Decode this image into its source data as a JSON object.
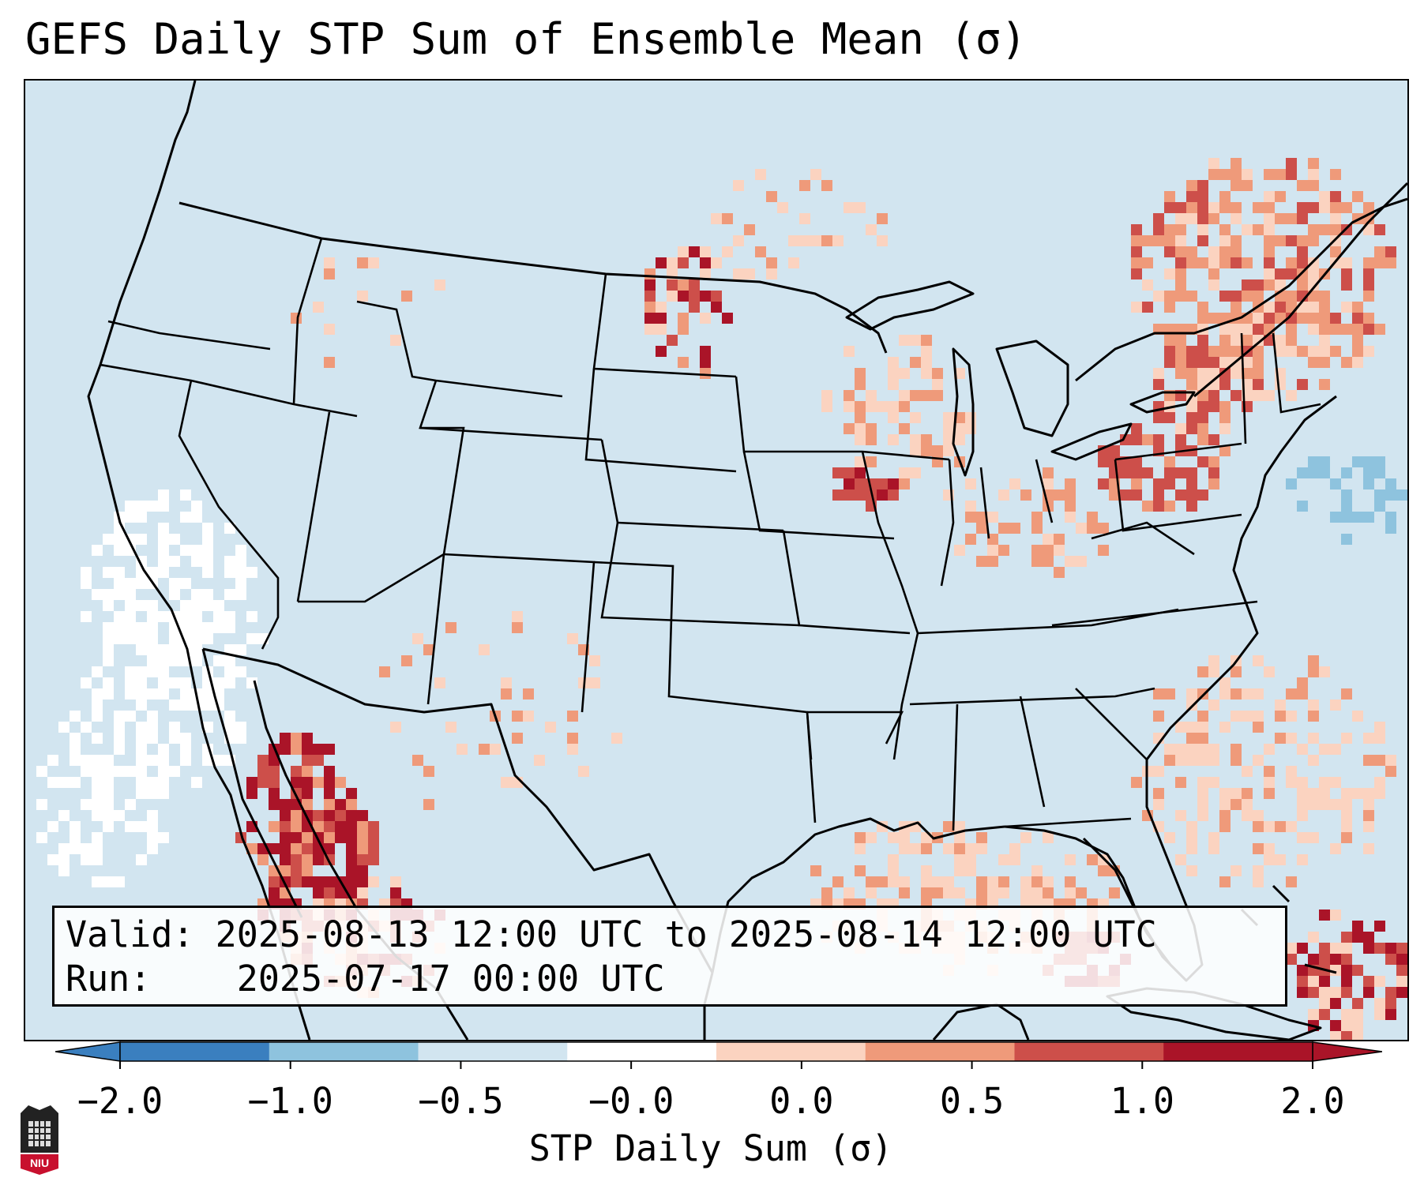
{
  "title": "GEFS Daily STP Sum of Ensemble Mean (σ)",
  "info": {
    "valid_label": "Valid:",
    "valid_value": "2025-08-13 12:00 UTC to 2025-08-14 12:00 UTC",
    "run_label": "Run:",
    "run_value": "2025-07-17 00:00 UTC"
  },
  "colorbar": {
    "label": "STP Daily Sum (σ)",
    "ticks": [
      "−2.0",
      "−1.0",
      "−0.5",
      "−0.0",
      "0.0",
      "0.5",
      "1.0",
      "2.0"
    ],
    "colors": [
      "#3a7fbf",
      "#8ec3de",
      "#d2e5f0",
      "#ffffff",
      "#fbd3c0",
      "#ef9a7a",
      "#cd4f4a",
      "#aa1428"
    ],
    "extend": "both"
  },
  "logo": {
    "text": "NIU"
  },
  "map": {
    "region": "Contiguous United States",
    "colors": {
      "background": "#d2e5f0",
      "white": "#ffffff",
      "light_red": "#fbd3c0",
      "medium_red": "#ef9a7a",
      "red": "#cd4f4a",
      "dark_red": "#aa1428",
      "light_blue": "#8ec3de"
    }
  }
}
